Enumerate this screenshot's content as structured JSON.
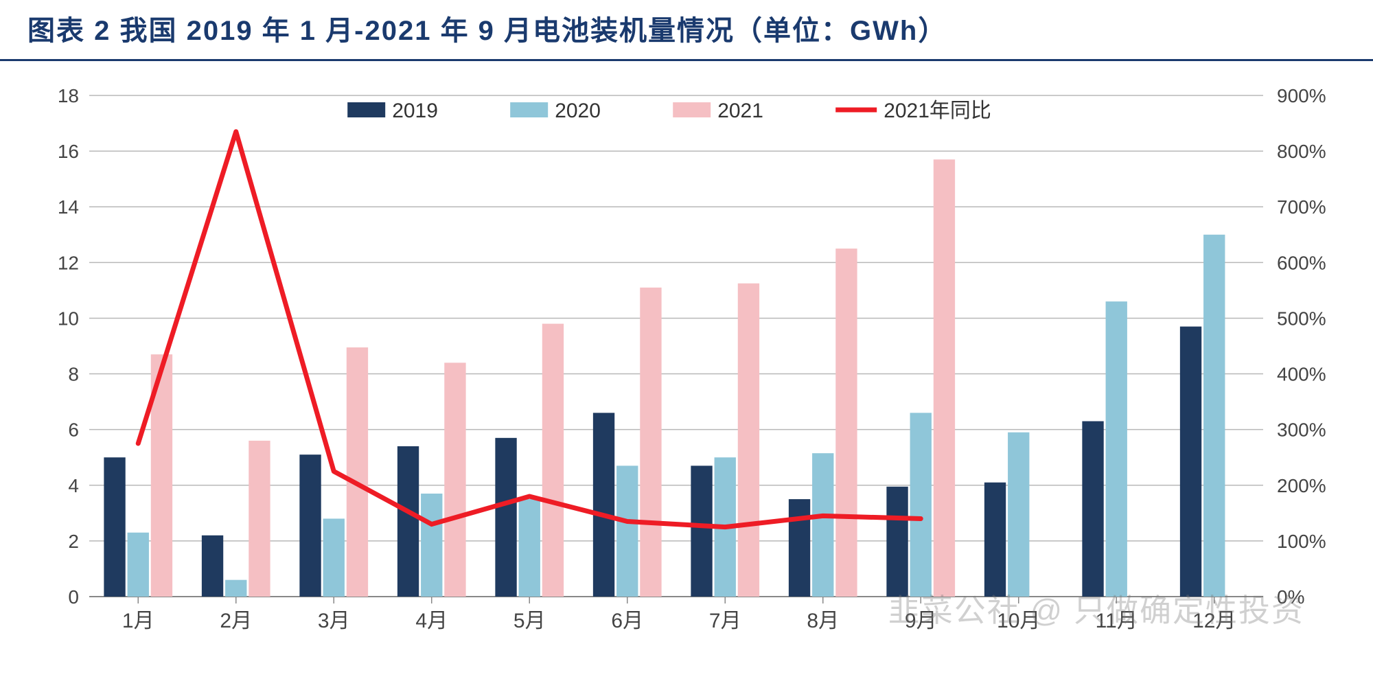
{
  "title": "图表 2 我国 2019 年 1 月-2021 年 9 月电池装机量情况（单位：GWh）",
  "watermark": "韭菜公社 @ 只做确定性投资",
  "chart": {
    "type": "bar+line",
    "background_color": "#ffffff",
    "grid_color": "#b8b8b8",
    "axis_color": "#888888",
    "title_color": "#1a3a6e",
    "title_fontsize": 40,
    "label_fontsize": 28,
    "categories": [
      "1月",
      "2月",
      "3月",
      "4月",
      "5月",
      "6月",
      "7月",
      "8月",
      "9月",
      "10月",
      "11月",
      "12月"
    ],
    "y_left": {
      "min": 0,
      "max": 18,
      "step": 2
    },
    "y_right": {
      "min": 0,
      "max": 900,
      "step": 100,
      "suffix": "%"
    },
    "bar_width": 0.22,
    "group_gap": 0.12,
    "series_bars": [
      {
        "name": "2019",
        "color": "#1f3a5f",
        "values": [
          5.0,
          2.2,
          5.1,
          5.4,
          5.7,
          6.6,
          4.7,
          3.5,
          3.95,
          4.1,
          6.3,
          9.7
        ]
      },
      {
        "name": "2020",
        "color": "#8fc6d9",
        "values": [
          2.3,
          0.6,
          2.8,
          3.7,
          3.5,
          4.7,
          5.0,
          5.15,
          6.6,
          5.9,
          10.6,
          13.0
        ]
      },
      {
        "name": "2021",
        "color": "#f5bfc3",
        "values": [
          8.7,
          5.6,
          8.95,
          8.4,
          9.8,
          11.1,
          11.25,
          12.5,
          15.7,
          null,
          null,
          null
        ]
      }
    ],
    "series_line": {
      "name": "2021年同比",
      "color": "#ee1c25",
      "width": 7,
      "values_pct": [
        275,
        835,
        225,
        130,
        180,
        135,
        125,
        145,
        140
      ]
    },
    "legend": {
      "items": [
        {
          "type": "bar",
          "label": "2019",
          "color": "#1f3a5f"
        },
        {
          "type": "bar",
          "label": "2020",
          "color": "#8fc6d9"
        },
        {
          "type": "bar",
          "label": "2021",
          "color": "#f5bfc3"
        },
        {
          "type": "line",
          "label": "2021年同比",
          "color": "#ee1c25"
        }
      ]
    }
  }
}
